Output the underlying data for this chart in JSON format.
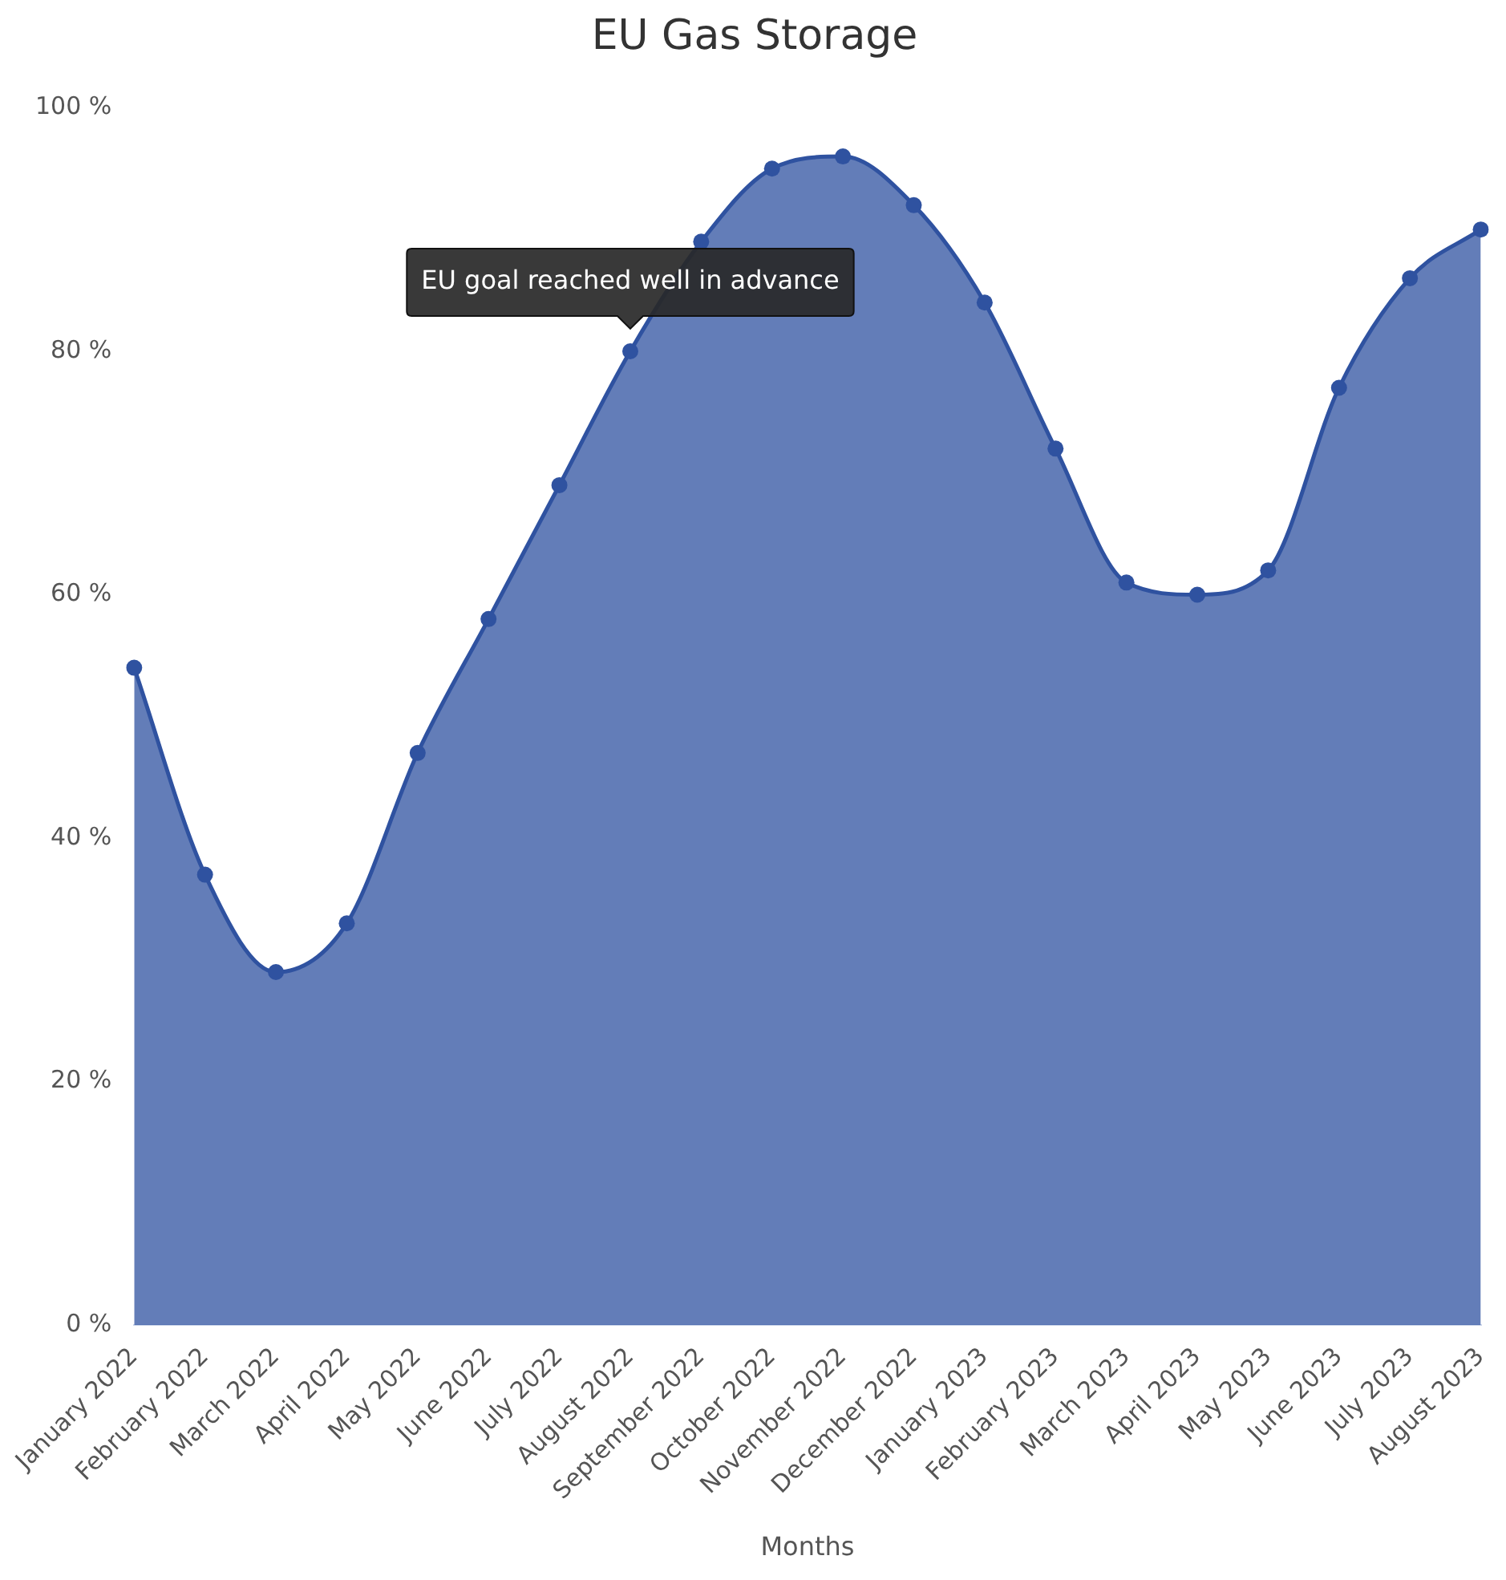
{
  "chart_data": {
    "type": "area",
    "title": "EU Gas Storage",
    "xlabel": "Months",
    "categories": [
      "January 2022",
      "February 2022",
      "March 2022",
      "April 2022",
      "May 2022",
      "June 2022",
      "July 2022",
      "August 2022",
      "September 2022",
      "October 2022",
      "November 2022",
      "December 2022",
      "January 2023",
      "February 2023",
      "March 2023",
      "April 2023",
      "May 2023",
      "June 2023",
      "July 2023",
      "August 2023"
    ],
    "series": [
      {
        "color": "#2f52a0",
        "values": [
          54,
          37,
          29,
          33,
          47,
          58,
          69,
          80,
          89,
          95,
          96,
          92,
          84,
          72,
          61,
          60,
          62,
          77,
          86,
          90
        ]
      }
    ],
    "ylim": [
      0,
      100
    ],
    "yticks": [
      {
        "value": 0,
        "label": "0 %"
      },
      {
        "value": 20,
        "label": "20 %"
      },
      {
        "value": 40,
        "label": "40 %"
      },
      {
        "value": 60,
        "label": "60 %"
      },
      {
        "value": 80,
        "label": "80 %"
      },
      {
        "value": 100,
        "label": "100 %"
      }
    ],
    "annotations": [
      {
        "text": "EU goal reached well in advance",
        "x": "August 2022",
        "y": 80
      }
    ],
    "grid": false,
    "legend": false,
    "marker": "circle",
    "line_style": "solid"
  }
}
